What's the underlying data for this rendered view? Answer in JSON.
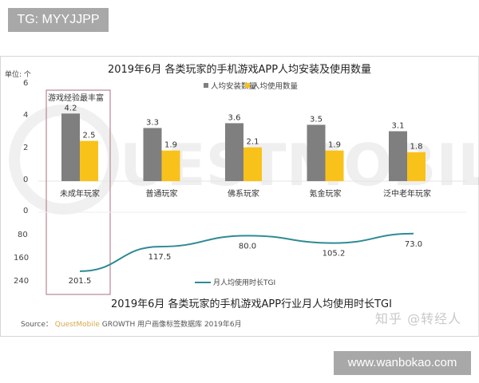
{
  "tag_badge": "TG: MYYJJPP",
  "site_badge": "www.wanbokao.com",
  "top_chart": {
    "title": "2019年6月 各类玩家的手机游戏APP人均安装及使用数量",
    "unit": "单位: 个",
    "legend": [
      {
        "label": "人均安装数量",
        "color": "#7f7f7f"
      },
      {
        "label": "人均使用数量",
        "color": "#f9c21a"
      }
    ],
    "y_ticks": [
      "6",
      "4",
      "2",
      "0"
    ],
    "highlight_label": "游戏经验最丰富"
  },
  "bottom_chart": {
    "title": "2019年6月 各类玩家的手机游戏APP行业月人均使用时长TGI",
    "legend": "月人均使用时长TGI",
    "y_ticks": [
      "0",
      "80",
      "160",
      "240"
    ]
  },
  "source": {
    "prefix": "Source：",
    "brand": "QuestMobile",
    "rest": "GROWTH 用户画像标签数据库 2019年6月"
  },
  "zhihu_watermark": "知乎 @转经人",
  "chart_data": [
    {
      "type": "bar",
      "title": "2019年6月 各类玩家的手机游戏APP人均安装及使用数量",
      "xlabel": "",
      "ylabel": "单位: 个",
      "ylim": [
        0,
        6
      ],
      "categories": [
        "未成年玩家",
        "普通玩家",
        "佛系玩家",
        "氪金玩家",
        "泛中老年玩家"
      ],
      "series": [
        {
          "name": "人均安装数量",
          "color": "#7f7f7f",
          "values": [
            4.2,
            3.3,
            3.6,
            3.5,
            3.1
          ]
        },
        {
          "name": "人均使用数量",
          "color": "#f9c21a",
          "values": [
            2.5,
            1.9,
            2.1,
            1.9,
            1.8
          ]
        }
      ],
      "annotations": [
        "游戏经验最丰富 (未成年玩家)"
      ],
      "legend_position": "top",
      "grid": false
    },
    {
      "type": "line",
      "title": "2019年6月 各类玩家的手机游戏APP行业月人均使用时长TGI",
      "xlabel": "",
      "ylabel": "",
      "ylim": [
        240,
        0
      ],
      "y_inverted": true,
      "categories": [
        "未成年玩家",
        "普通玩家",
        "佛系玩家",
        "氪金玩家",
        "泛中老年玩家"
      ],
      "series": [
        {
          "name": "月人均使用时长TGI",
          "color": "#2e8b95",
          "values": [
            201.5,
            117.5,
            80.0,
            105.2,
            73.0
          ]
        }
      ],
      "legend_position": "bottom",
      "grid": false
    }
  ]
}
